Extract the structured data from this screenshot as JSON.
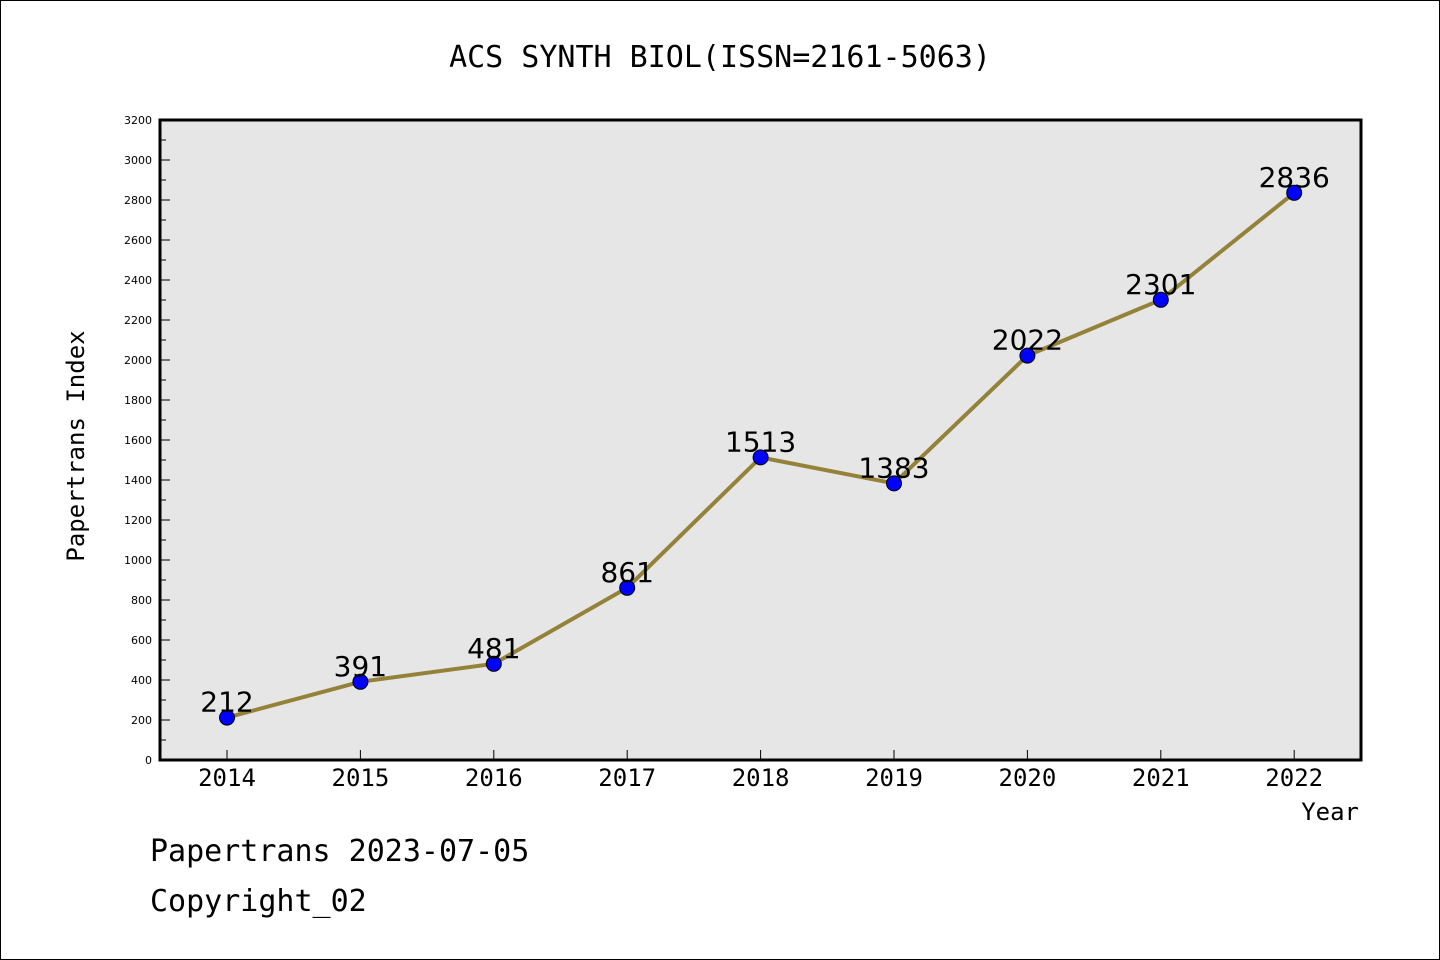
{
  "chart_data": {
    "type": "line",
    "title": "ACS SYNTH BIOL(ISSN=2161-5063)",
    "xlabel": "Year",
    "ylabel": "Papertrans Index",
    "categories": [
      "2014",
      "2015",
      "2016",
      "2017",
      "2018",
      "2019",
      "2020",
      "2021",
      "2022"
    ],
    "series": [
      {
        "values": [
          212,
          391,
          481,
          861,
          1513,
          1383,
          2022,
          2301,
          2836
        ]
      }
    ],
    "data_labels": [
      "212",
      "391",
      "481",
      "861",
      "1513",
      "1383",
      "2022",
      "2301",
      "2836"
    ],
    "ylim": [
      0,
      3200
    ],
    "y_ticks": [
      "0",
      "200",
      "400",
      "600",
      "800",
      "1000",
      "1200",
      "1400",
      "1600",
      "1800",
      "2000",
      "2200",
      "2400",
      "2600",
      "2800",
      "3000",
      "3200"
    ],
    "grid": false,
    "colors": {
      "line": "#948239",
      "marker": "#0000ff",
      "plot_background": "#e6e6e6"
    }
  },
  "footer": {
    "line1": "Papertrans 2023-07-05",
    "line2": "Copyright_02"
  }
}
